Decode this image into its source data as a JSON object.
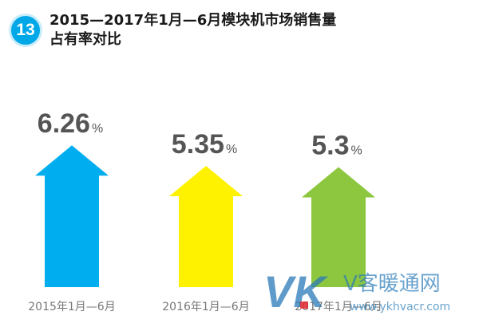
{
  "badge": {
    "number": "13"
  },
  "title": {
    "line1": "2015—2017年1月—6月模块机市场销售量",
    "line2": "占有率对比"
  },
  "chart_data": {
    "type": "bar",
    "title": "2015—2017年1月—6月模块机市场销售量占有率对比",
    "categories": [
      "2015年1月—6月",
      "2016年1月—6月",
      "2017年1月—6月"
    ],
    "values": [
      6.26,
      5.35,
      5.3
    ],
    "value_labels": [
      "6.26",
      "5.35",
      "5.3"
    ],
    "unit": "%",
    "colors": [
      "#00aeef",
      "#fff200",
      "#8dc63f"
    ],
    "legend": "none",
    "grid": false
  },
  "watermark": {
    "letters": "VK",
    "brand": "V客暖通网",
    "url": "www.ykhvacr.com",
    "color": "#2a7ab8"
  }
}
